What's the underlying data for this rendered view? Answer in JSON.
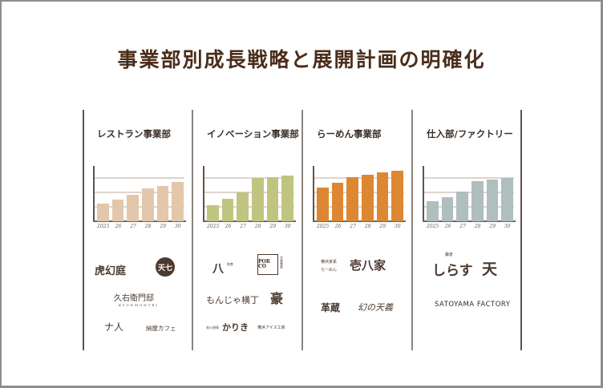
{
  "page": {
    "title": "事業部別成長戦略と展開計画の明確化"
  },
  "colors": {
    "restaurant": "#e3c7ab",
    "innovation": "#c0c481",
    "ramen": "#dd8733",
    "factory": "#aebfbd",
    "title": "#4a2d1a",
    "lines": "#5e544e"
  },
  "chart_data": [
    {
      "type": "bar",
      "title": "レストラン事業部",
      "categories": [
        "2025",
        "26",
        "27",
        "28",
        "29",
        "30"
      ],
      "values": [
        34,
        41,
        50,
        62,
        67,
        75
      ],
      "ylim": [
        0,
        100
      ],
      "grid": true
    },
    {
      "type": "bar",
      "title": "イノベーション事業部",
      "categories": [
        "2025",
        "26",
        "27",
        "28",
        "29",
        "30"
      ],
      "values": [
        30,
        43,
        55,
        82,
        84,
        86
      ],
      "ylim": [
        0,
        100
      ],
      "grid": true
    },
    {
      "type": "bar",
      "title": "らーめん事業部",
      "categories": [
        "2025",
        "26",
        "27",
        "28",
        "29",
        "30"
      ],
      "values": [
        63,
        72,
        84,
        88,
        92,
        96
      ],
      "ylim": [
        0,
        100
      ],
      "grid": true
    },
    {
      "type": "bar",
      "title": "仕入部/ファクトリー",
      "categories": [
        "2025",
        "26",
        "27",
        "28",
        "29",
        "30"
      ],
      "values": [
        38,
        46,
        56,
        76,
        79,
        82
      ],
      "ylim": [
        0,
        100
      ],
      "grid": true
    }
  ],
  "panels": [
    {
      "title": "レストラン事業部",
      "logos": [
        "虎幻庭",
        "天七",
        "久右衛門邸",
        "KYUEMONTEI",
        "ナ人",
        "納屋カフェ"
      ]
    },
    {
      "title": "イノベーション事業部",
      "logos": [
        "八",
        "和食",
        "POR CO",
        "大衆食堂",
        "もんじゃ横丁",
        "豪",
        "炭火焼鳥",
        "かりき",
        "横浜アイス工房"
      ]
    },
    {
      "title": "らーめん事業部",
      "logos": [
        "横浜家系",
        "らーめん",
        "壱八家",
        "革蔵",
        "幻の天義"
      ]
    },
    {
      "title": "仕入部/ファクトリー",
      "logos": [
        "鎌倉",
        "しらす",
        "天",
        "SATOYAMA FACTORY"
      ]
    }
  ]
}
